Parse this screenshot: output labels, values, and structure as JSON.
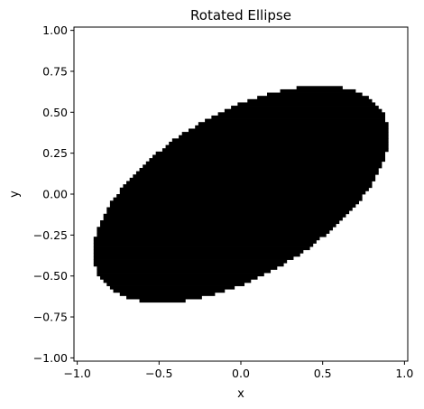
{
  "chart_data": {
    "type": "heatmap",
    "title": "Rotated Ellipse",
    "xlabel": "x",
    "ylabel": "y",
    "xlim": [
      -1.02,
      1.02
    ],
    "ylim": [
      -1.02,
      1.02
    ],
    "xticks": [
      -1.0,
      -0.5,
      0.0,
      0.5,
      1.0
    ],
    "xtick_labels": [
      "−1.0",
      "−0.5",
      "0.0",
      "0.5",
      "1.0"
    ],
    "yticks": [
      -1.0,
      -0.75,
      -0.5,
      -0.25,
      0.0,
      0.25,
      0.5,
      0.75,
      1.0
    ],
    "ytick_labels": [
      "−1.00",
      "−0.75",
      "−0.50",
      "−0.25",
      "0.00",
      "0.25",
      "0.50",
      "0.75",
      "1.00"
    ],
    "grid": false,
    "colormap": [
      "#ffffff",
      "#000000"
    ],
    "ellipse": {
      "center": [
        0.0,
        0.0
      ],
      "semi_major": 1.0,
      "semi_minor": 0.5,
      "rotation_deg": 30
    },
    "grid_resolution": 100
  }
}
